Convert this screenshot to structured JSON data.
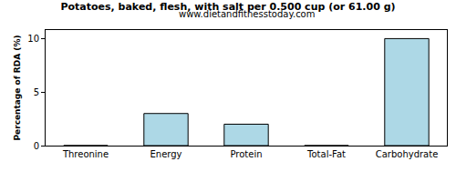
{
  "chart_data": {
    "type": "bar",
    "title": "Potatoes, baked, flesh, with salt per 0.500 cup (or 61.00 g)",
    "subtitle": "www.dietandfitnesstoday.com",
    "y_label": "Percentage of RDA (%)",
    "categories": [
      "Threonine",
      "Energy",
      "Protein",
      "Total-Fat",
      "Carbohydrate"
    ],
    "values": [
      0,
      3,
      2,
      0,
      10
    ],
    "color": "#add8e6",
    "ylim": [
      0,
      10.8
    ],
    "yticks": [
      0,
      5,
      10
    ],
    "grid": false
  }
}
